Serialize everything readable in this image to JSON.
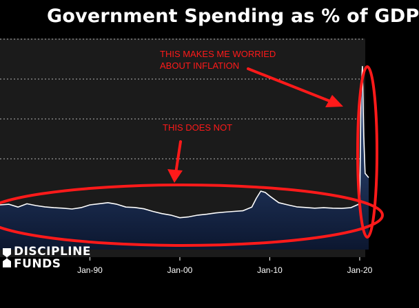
{
  "title": "Government Spending as % of GDP",
  "logo": {
    "line1": "DISCIPLINE",
    "line2": "FUNDS"
  },
  "colors": {
    "background": "#000000",
    "plot_background": "#1b1b1b",
    "area_fill_top": "#3a5a92",
    "area_fill_bottom": "#0c1730",
    "line": "#ffffff",
    "annotation": "#ff1a1a",
    "grid": "#cfcfcf"
  },
  "annotations": [
    {
      "text": "THIS MAKES ME WORRIED\nABOUT INFLATION"
    },
    {
      "text": "THIS DOES NOT"
    }
  ],
  "chart_data": {
    "type": "area",
    "title": "Government Spending as % of GDP",
    "xlabel": "",
    "ylabel": "",
    "x_ticks": [
      "Jan-90",
      "Jan-00",
      "Jan-10",
      "Jan-20"
    ],
    "x_range": [
      1980.0,
      2021.0
    ],
    "y_range": [
      0,
      100
    ],
    "grid": "horizontal dotted",
    "series": [
      {
        "x": [
          1980.0,
          1981.0,
          1982.0,
          1983.0,
          1984.0,
          1985.0,
          1986.0,
          1987.0,
          1988.0,
          1989.0,
          1990.0,
          1991.0,
          1992.0,
          1993.0,
          1994.0,
          1995.0,
          1996.0,
          1997.0,
          1998.0,
          1999.0,
          2000.0,
          2001.0,
          2002.0,
          2003.0,
          2004.0,
          2005.0,
          2006.0,
          2007.0,
          2008.0,
          2008.5,
          2009.0,
          2009.5,
          2010.0,
          2011.0,
          2012.0,
          2013.0,
          2014.0,
          2015.0,
          2016.0,
          2017.0,
          2018.0,
          2019.0,
          2020.0,
          2020.15,
          2020.3,
          2020.45,
          2020.6,
          2021.0
        ],
        "y": [
          20.5,
          20.8,
          19.5,
          21.0,
          20.2,
          19.6,
          19.2,
          19.0,
          18.6,
          19.2,
          20.5,
          21.0,
          21.5,
          20.8,
          19.5,
          19.3,
          18.7,
          17.5,
          16.5,
          15.8,
          14.6,
          15.0,
          15.8,
          16.2,
          16.8,
          17.2,
          17.5,
          17.8,
          19.5,
          23.5,
          26.8,
          26.2,
          24.5,
          21.5,
          20.5,
          19.6,
          19.3,
          19.0,
          19.2,
          19.0,
          18.9,
          19.2,
          21.0,
          72.0,
          84.0,
          52.0,
          35.0,
          33.0
        ]
      }
    ]
  }
}
